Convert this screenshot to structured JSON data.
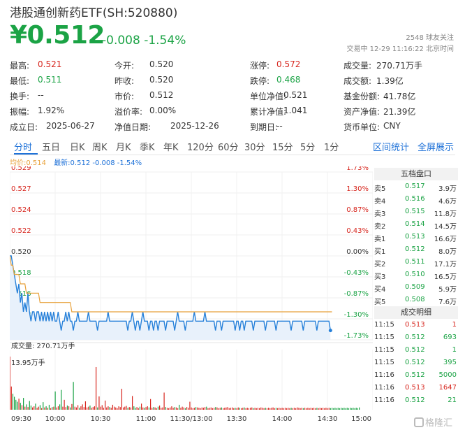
{
  "header": {
    "title": "港股通创新药ETF(SH:520880)",
    "price": "¥0.512",
    "change": "-0.008 -1.54%",
    "followers": "2548 球友关注",
    "trade_time": "交易中 12-29 11:16:22 北京时间"
  },
  "stats": [
    [
      [
        "最高:",
        "0.521",
        "red"
      ],
      [
        "今开:",
        "0.520",
        ""
      ],
      [
        "涨停:",
        "0.572",
        "red"
      ],
      [
        "成交量:",
        "270.71万手",
        ""
      ]
    ],
    [
      [
        "最低:",
        "0.511",
        "green"
      ],
      [
        "昨收:",
        "0.520",
        ""
      ],
      [
        "跌停:",
        "0.468",
        "green"
      ],
      [
        "成交额:",
        "1.39亿",
        ""
      ]
    ],
    [
      [
        "换手:",
        "--",
        ""
      ],
      [
        "市价:",
        "0.512",
        ""
      ],
      [
        "单位净值:",
        "0.521",
        ""
      ],
      [
        "基金份额:",
        "41.78亿",
        ""
      ]
    ],
    [
      [
        "振幅:",
        "1.92%",
        ""
      ],
      [
        "溢价率:",
        "0.00%",
        ""
      ],
      [
        "累计净值:",
        "1.041",
        ""
      ],
      [
        "资产净值:",
        "21.39亿",
        ""
      ]
    ],
    [
      [
        "成立日:",
        "2025-06-27",
        ""
      ],
      [
        "净值日期:",
        "2025-12-26",
        ""
      ],
      [
        "到期日:",
        "--",
        ""
      ],
      [
        "货币单位:",
        "CNY",
        ""
      ]
    ]
  ],
  "tabs": [
    "分时",
    "五日",
    "日K",
    "周K",
    "月K",
    "季K",
    "年K",
    "120分",
    "60分",
    "30分",
    "15分",
    "5分",
    "1分"
  ],
  "active_tab": "分时",
  "right_tabs": [
    "区间统计",
    "全屏展示"
  ],
  "legend": {
    "avg": "均价:0.514",
    "last": "最新:0.512 -0.008 -1.54%"
  },
  "panel": {
    "order_title": "五档盘口",
    "asks": [
      [
        "卖5",
        "0.517",
        "3.9万"
      ],
      [
        "卖4",
        "0.516",
        "4.6万"
      ],
      [
        "卖3",
        "0.515",
        "11.8万"
      ],
      [
        "卖2",
        "0.514",
        "14.5万"
      ],
      [
        "卖1",
        "0.513",
        "16.6万"
      ]
    ],
    "bids": [
      [
        "买1",
        "0.512",
        "8.0万"
      ],
      [
        "买2",
        "0.511",
        "17.1万"
      ],
      [
        "买3",
        "0.510",
        "16.5万"
      ],
      [
        "买4",
        "0.509",
        "5.9万"
      ],
      [
        "买5",
        "0.508",
        "7.6万"
      ]
    ],
    "trades_title": "成交明细",
    "trades": [
      [
        "11:15",
        "0.513",
        "1",
        "red"
      ],
      [
        "11:15",
        "0.512",
        "693",
        "green"
      ],
      [
        "11:15",
        "0.512",
        "1",
        "green"
      ],
      [
        "11:15",
        "0.512",
        "395",
        "green"
      ],
      [
        "11:16",
        "0.512",
        "5000",
        "green"
      ],
      [
        "11:16",
        "0.513",
        "1647",
        "red"
      ],
      [
        "11:16",
        "0.512",
        "21",
        "green"
      ]
    ]
  },
  "chart_data": {
    "type": "line",
    "price_ticks": [
      "0.529",
      "0.527",
      "0.524",
      "0.522",
      "0.520",
      "0.518",
      "0.516",
      "0.513",
      "0.511"
    ],
    "pct_ticks": [
      "1.73%",
      "1.30%",
      "0.87%",
      "0.43%",
      "0.00%",
      "-0.43%",
      "-0.87%",
      "-1.30%",
      "-1.73%"
    ],
    "ylim": [
      0.511,
      0.529
    ],
    "prev_close": 0.52,
    "x_ticks": [
      "09:30",
      "10:00",
      "10:30",
      "11:00",
      "11:30/13:00",
      "13:30",
      "14:00",
      "14:30",
      "15:00"
    ],
    "volume_label": "成交量: 270.71万手",
    "volume_max_label": "13.95万手",
    "series": [
      {
        "name": "最新",
        "values": [
          0.52,
          0.52,
          0.519,
          0.518,
          0.517,
          0.516,
          0.517,
          0.515,
          0.516,
          0.514,
          0.515,
          0.514,
          0.516,
          0.514,
          0.513,
          0.514,
          0.514,
          0.513,
          0.514,
          0.514,
          0.513,
          0.514,
          0.513,
          0.514,
          0.513,
          0.514,
          0.513,
          0.514,
          0.513,
          0.514,
          0.513,
          0.513,
          0.514,
          0.513,
          0.512,
          0.513,
          0.513,
          0.514,
          0.513,
          0.514,
          0.513,
          0.513,
          0.512,
          0.513,
          0.513,
          0.514,
          0.513,
          0.513,
          0.513,
          0.513,
          0.513,
          0.513,
          0.514,
          0.513,
          0.513,
          0.513,
          0.513,
          0.513,
          0.512,
          0.513,
          0.513,
          0.513,
          0.513,
          0.513,
          0.513,
          0.514,
          0.513,
          0.513,
          0.513,
          0.513,
          0.513,
          0.513,
          0.513,
          0.513,
          0.513,
          0.513,
          0.513,
          0.513,
          0.512,
          0.513,
          0.513,
          0.514,
          0.513,
          0.512,
          0.513,
          0.513,
          0.512,
          0.513,
          0.514,
          0.513,
          0.513,
          0.513,
          0.512,
          0.513,
          0.513,
          0.512,
          0.513,
          0.513,
          0.512,
          0.513,
          0.513,
          0.513,
          0.513,
          0.512,
          0.513,
          0.513,
          0.513,
          0.513,
          0.513,
          0.512,
          0.513,
          0.514,
          0.513,
          0.513,
          0.513,
          0.513,
          0.512,
          0.513,
          0.513,
          0.513,
          0.513,
          0.513,
          0.514,
          0.513,
          0.513,
          0.513,
          0.513,
          0.513,
          0.513,
          0.514,
          0.513,
          0.513,
          0.513,
          0.513,
          0.513,
          0.513,
          0.512,
          0.513,
          0.513,
          0.513,
          0.512,
          0.513,
          0.513,
          0.513,
          0.513,
          0.513,
          0.513,
          0.513,
          0.513,
          0.512,
          0.513,
          0.513,
          0.512,
          0.513,
          0.513,
          0.512,
          0.513,
          0.513,
          0.513,
          0.513,
          0.513,
          0.512,
          0.513,
          0.513,
          0.513,
          0.513,
          0.513,
          0.513,
          0.513,
          0.512,
          0.513,
          0.513,
          0.513,
          0.513,
          0.513,
          0.513,
          0.512,
          0.513,
          0.513,
          0.513,
          0.513,
          0.513,
          0.513,
          0.513,
          0.513,
          0.513,
          0.512,
          0.513,
          0.513,
          0.513,
          0.513,
          0.513,
          0.513,
          0.513,
          0.512,
          0.513,
          0.513,
          0.513,
          0.513,
          0.513,
          0.513,
          0.513,
          0.513,
          0.512,
          0.513,
          0.513,
          0.513,
          0.513,
          0.513,
          0.513,
          0.513,
          0.513,
          0.512
        ]
      },
      {
        "name": "均价",
        "values": [
          0.52,
          0.519,
          0.519,
          0.518,
          0.518,
          0.518,
          0.518,
          0.517,
          0.517,
          0.517,
          0.517,
          0.516,
          0.516,
          0.516,
          0.516,
          0.516,
          0.516,
          0.516,
          0.516,
          0.516,
          0.515,
          0.515,
          0.515,
          0.515,
          0.515,
          0.515,
          0.515,
          0.515,
          0.515,
          0.515,
          0.515,
          0.515,
          0.515,
          0.515,
          0.515,
          0.515,
          0.515,
          0.515,
          0.515,
          0.515,
          0.515,
          0.514,
          0.514,
          0.514,
          0.514,
          0.514,
          0.514,
          0.514,
          0.514,
          0.514,
          0.514,
          0.514,
          0.514,
          0.514,
          0.514,
          0.514,
          0.514,
          0.514,
          0.514,
          0.514,
          0.514,
          0.514,
          0.514,
          0.514,
          0.514,
          0.514,
          0.514,
          0.514,
          0.514,
          0.514,
          0.514,
          0.514,
          0.514,
          0.514,
          0.514,
          0.514,
          0.514,
          0.514,
          0.514,
          0.514,
          0.514,
          0.514,
          0.514,
          0.514,
          0.514,
          0.514,
          0.514,
          0.514,
          0.514,
          0.514,
          0.514,
          0.514,
          0.514,
          0.514,
          0.514,
          0.514,
          0.514,
          0.514,
          0.514,
          0.514,
          0.514,
          0.514,
          0.514,
          0.514,
          0.514,
          0.514,
          0.514,
          0.514,
          0.514,
          0.514,
          0.514,
          0.514,
          0.514,
          0.514,
          0.514,
          0.514,
          0.514,
          0.514,
          0.514,
          0.514,
          0.514,
          0.514,
          0.514,
          0.514,
          0.514,
          0.514,
          0.514,
          0.514,
          0.514,
          0.514,
          0.514,
          0.514,
          0.514,
          0.514,
          0.514,
          0.514,
          0.514,
          0.514,
          0.514,
          0.514,
          0.514,
          0.514,
          0.514,
          0.514,
          0.514,
          0.514,
          0.514,
          0.514,
          0.514,
          0.514,
          0.514,
          0.514,
          0.514,
          0.514,
          0.514,
          0.514,
          0.514,
          0.514,
          0.514,
          0.514,
          0.514,
          0.514,
          0.514,
          0.514,
          0.514,
          0.514,
          0.514,
          0.514,
          0.514,
          0.514,
          0.514,
          0.514,
          0.514,
          0.514,
          0.514,
          0.514,
          0.514,
          0.514,
          0.514,
          0.514,
          0.514,
          0.514,
          0.514,
          0.514,
          0.514,
          0.514,
          0.514,
          0.514,
          0.514,
          0.514,
          0.514,
          0.514,
          0.514,
          0.514,
          0.514,
          0.514,
          0.514,
          0.514,
          0.514,
          0.514,
          0.514,
          0.514,
          0.514,
          0.514,
          0.514,
          0.514,
          0.514,
          0.514,
          0.514,
          0.514,
          0.514,
          0.514,
          0.514,
          0.514
        ]
      }
    ],
    "volume": [
      13.95,
      6.1,
      4.2,
      3.4,
      2.6,
      2.1,
      2.9,
      1.8,
      1.2,
      3.1,
      0.8,
      1.4,
      0.7,
      2.3,
      1.1,
      0.6,
      0.9,
      1.6,
      0.5,
      0.8,
      1.2,
      0.4,
      2.0,
      0.6,
      0.9,
      0.5,
      1.3,
      0.4,
      0.7,
      0.8,
      4.8,
      0.6,
      0.9,
      1.4,
      5.2,
      0.8,
      2.6,
      0.7,
      1.1,
      0.9,
      0.6,
      1.5,
      7.3,
      0.8,
      0.6,
      1.2,
      0.5,
      0.9,
      1.4,
      0.7,
      2.2,
      0.6,
      0.8,
      1.1,
      0.5,
      0.7,
      0.9,
      11.2,
      0.6,
      3.5,
      0.8,
      1.2,
      0.5,
      2.4,
      0.6,
      0.9,
      0.7,
      0.5,
      1.3,
      0.8,
      0.6,
      0.4,
      0.9,
      0.7,
      5.5,
      0.6,
      0.8,
      1.0,
      0.5,
      0.7,
      0.6,
      3.6,
      0.9,
      0.5,
      0.7,
      0.4,
      0.8,
      1.6,
      0.6,
      0.5,
      0.7,
      0.9,
      0.6,
      2.8,
      0.5,
      0.7,
      0.6,
      0.4,
      0.8,
      1.1,
      0.5,
      0.6,
      4.5,
      0.7,
      0.5,
      0.4,
      0.6,
      0.9,
      0.5,
      0.7,
      0.6,
      0.4,
      1.3,
      0.5,
      0.8,
      0.6,
      0.4,
      0.7,
      0.5,
      2.1,
      0.6,
      0.4,
      0.5,
      0.7,
      0.6,
      0.5,
      0.4,
      0.6,
      0.5,
      0.7,
      0.8,
      0.4,
      0.5,
      0.6,
      0.4,
      0.5,
      0.7,
      0.6,
      0.4,
      0.5,
      0.6,
      0.4,
      0.5,
      0.6,
      0.7,
      0.4,
      0.5,
      0.6,
      0.4,
      0.5,
      0.4,
      0.6,
      0.5,
      0.4,
      0.5,
      0.6,
      0.4,
      0.5,
      0.4,
      0.5,
      0.6,
      0.4,
      0.5,
      0.4,
      0.5,
      0.4,
      0.6,
      0.5,
      0.4,
      0.5,
      0.4,
      0.5,
      0.4,
      0.5,
      0.6,
      0.4,
      0.5,
      0.4,
      0.5,
      0.4,
      0.5,
      0.4,
      0.5,
      0.4,
      0.5,
      0.4,
      0.5,
      0.4,
      0.5,
      0.4,
      0.6,
      0.5,
      0.4,
      0.5,
      0.4,
      0.5,
      0.4,
      0.5,
      0.4,
      0.5,
      0.4,
      0.5,
      0.4,
      0.5,
      0.4,
      0.5,
      0.4,
      0.5,
      0.4,
      0.5,
      0.4,
      0.5,
      0.4,
      0.5,
      0.4,
      0.5,
      0.4,
      0.5,
      0.4,
      0.5,
      0.4,
      0.5,
      0.4,
      0.5,
      0.4,
      0.5,
      0.4,
      0.5,
      0.4,
      0.5,
      0.4,
      0.6
    ]
  },
  "watermark": "格隆汇"
}
